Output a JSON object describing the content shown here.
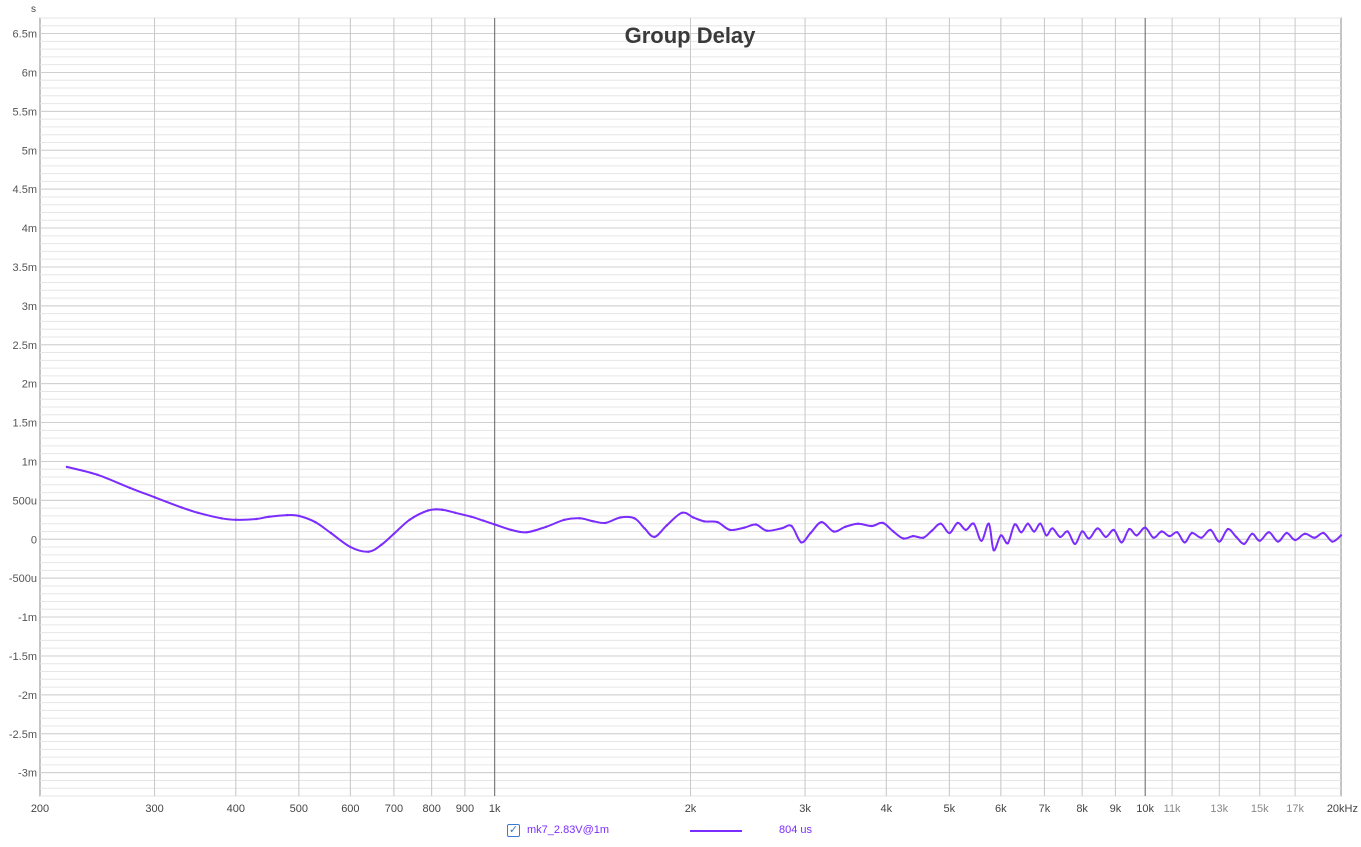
{
  "chart_data": {
    "type": "line",
    "title": "Group Delay",
    "ylabel": "s",
    "xlabel": "",
    "xscale": "log",
    "xlim": [
      200,
      20000
    ],
    "ylim": [
      -3.3,
      6.7
    ],
    "y_unit_note": "values in milliseconds",
    "grid": true,
    "xticks": [
      {
        "v": 200,
        "label": "200"
      },
      {
        "v": 300,
        "label": "300"
      },
      {
        "v": 400,
        "label": "400"
      },
      {
        "v": 500,
        "label": "500"
      },
      {
        "v": 600,
        "label": "600"
      },
      {
        "v": 700,
        "label": "700"
      },
      {
        "v": 800,
        "label": "800"
      },
      {
        "v": 900,
        "label": "900"
      },
      {
        "v": 1000,
        "label": "1k"
      },
      {
        "v": 2000,
        "label": "2k"
      },
      {
        "v": 3000,
        "label": "3k"
      },
      {
        "v": 4000,
        "label": "4k"
      },
      {
        "v": 5000,
        "label": "5k"
      },
      {
        "v": 6000,
        "label": "6k"
      },
      {
        "v": 7000,
        "label": "7k"
      },
      {
        "v": 8000,
        "label": "8k"
      },
      {
        "v": 9000,
        "label": "9k"
      },
      {
        "v": 10000,
        "label": "10k"
      },
      {
        "v": 11000,
        "label": "11k"
      },
      {
        "v": 13000,
        "label": "13k"
      },
      {
        "v": 15000,
        "label": "15k"
      },
      {
        "v": 17000,
        "label": "17k"
      },
      {
        "v": 20000,
        "label": "20kHz"
      }
    ],
    "yticks": [
      {
        "v": 6.5,
        "label": "6.5m"
      },
      {
        "v": 6,
        "label": "6m"
      },
      {
        "v": 5.5,
        "label": "5.5m"
      },
      {
        "v": 5,
        "label": "5m"
      },
      {
        "v": 4.5,
        "label": "4.5m"
      },
      {
        "v": 4,
        "label": "4m"
      },
      {
        "v": 3.5,
        "label": "3.5m"
      },
      {
        "v": 3,
        "label": "3m"
      },
      {
        "v": 2.5,
        "label": "2.5m"
      },
      {
        "v": 2,
        "label": "2m"
      },
      {
        "v": 1.5,
        "label": "1.5m"
      },
      {
        "v": 1,
        "label": "1m"
      },
      {
        "v": 0.5,
        "label": "500u"
      },
      {
        "v": 0,
        "label": "0"
      },
      {
        "v": -0.5,
        "label": "-500u"
      },
      {
        "v": -1,
        "label": "-1m"
      },
      {
        "v": -1.5,
        "label": "-1.5m"
      },
      {
        "v": -2,
        "label": "-2m"
      },
      {
        "v": -2.5,
        "label": "-2.5m"
      },
      {
        "v": -3,
        "label": "-3m"
      }
    ],
    "series": [
      {
        "name": "mk7_2.83V@1m",
        "color": "#7b2cff",
        "points": [
          [
            220,
            0.93
          ],
          [
            245,
            0.83
          ],
          [
            275,
            0.66
          ],
          [
            300,
            0.54
          ],
          [
            330,
            0.41
          ],
          [
            350,
            0.34
          ],
          [
            380,
            0.27
          ],
          [
            400,
            0.25
          ],
          [
            430,
            0.26
          ],
          [
            450,
            0.29
          ],
          [
            480,
            0.31
          ],
          [
            500,
            0.3
          ],
          [
            530,
            0.22
          ],
          [
            560,
            0.08
          ],
          [
            600,
            -0.1
          ],
          [
            640,
            -0.16
          ],
          [
            670,
            -0.07
          ],
          [
            700,
            0.07
          ],
          [
            740,
            0.25
          ],
          [
            790,
            0.37
          ],
          [
            830,
            0.38
          ],
          [
            870,
            0.34
          ],
          [
            920,
            0.29
          ],
          [
            960,
            0.24
          ],
          [
            1000,
            0.19
          ],
          [
            1060,
            0.12
          ],
          [
            1120,
            0.09
          ],
          [
            1200,
            0.16
          ],
          [
            1280,
            0.25
          ],
          [
            1350,
            0.27
          ],
          [
            1420,
            0.23
          ],
          [
            1480,
            0.21
          ],
          [
            1560,
            0.28
          ],
          [
            1640,
            0.27
          ],
          [
            1700,
            0.14
          ],
          [
            1760,
            0.03
          ],
          [
            1840,
            0.18
          ],
          [
            1940,
            0.34
          ],
          [
            2020,
            0.28
          ],
          [
            2100,
            0.23
          ],
          [
            2200,
            0.22
          ],
          [
            2300,
            0.12
          ],
          [
            2420,
            0.15
          ],
          [
            2520,
            0.19
          ],
          [
            2620,
            0.11
          ],
          [
            2760,
            0.14
          ],
          [
            2860,
            0.17
          ],
          [
            2960,
            -0.04
          ],
          [
            3060,
            0.08
          ],
          [
            3180,
            0.22
          ],
          [
            3320,
            0.1
          ],
          [
            3460,
            0.16
          ],
          [
            3620,
            0.2
          ],
          [
            3800,
            0.17
          ],
          [
            3950,
            0.21
          ],
          [
            4100,
            0.1
          ],
          [
            4250,
            0.01
          ],
          [
            4400,
            0.04
          ],
          [
            4560,
            0.02
          ],
          [
            4700,
            0.11
          ],
          [
            4850,
            0.2
          ],
          [
            5000,
            0.08
          ],
          [
            5150,
            0.21
          ],
          [
            5300,
            0.12
          ],
          [
            5450,
            0.2
          ],
          [
            5600,
            -0.02
          ],
          [
            5750,
            0.2
          ],
          [
            5850,
            -0.14
          ],
          [
            6000,
            0.05
          ],
          [
            6150,
            -0.05
          ],
          [
            6300,
            0.19
          ],
          [
            6450,
            0.09
          ],
          [
            6600,
            0.2
          ],
          [
            6750,
            0.1
          ],
          [
            6900,
            0.2
          ],
          [
            7050,
            0.05
          ],
          [
            7200,
            0.14
          ],
          [
            7400,
            0.03
          ],
          [
            7600,
            0.1
          ],
          [
            7800,
            -0.06
          ],
          [
            8000,
            0.1
          ],
          [
            8200,
            0.01
          ],
          [
            8450,
            0.14
          ],
          [
            8700,
            0.03
          ],
          [
            8950,
            0.12
          ],
          [
            9200,
            -0.04
          ],
          [
            9450,
            0.13
          ],
          [
            9700,
            0.05
          ],
          [
            10000,
            0.15
          ],
          [
            10300,
            0.02
          ],
          [
            10600,
            0.1
          ],
          [
            10900,
            0.04
          ],
          [
            11200,
            0.09
          ],
          [
            11500,
            -0.04
          ],
          [
            11800,
            0.08
          ],
          [
            12200,
            0.02
          ],
          [
            12600,
            0.12
          ],
          [
            13000,
            -0.03
          ],
          [
            13400,
            0.13
          ],
          [
            13800,
            0.03
          ],
          [
            14200,
            -0.06
          ],
          [
            14600,
            0.07
          ],
          [
            15000,
            -0.02
          ],
          [
            15500,
            0.09
          ],
          [
            16000,
            -0.03
          ],
          [
            16500,
            0.08
          ],
          [
            17000,
            -0.01
          ],
          [
            17600,
            0.07
          ],
          [
            18200,
            0.02
          ],
          [
            18800,
            0.08
          ],
          [
            19400,
            -0.03
          ],
          [
            20000,
            0.05
          ]
        ]
      }
    ],
    "legend": {
      "placement": "bottom",
      "checked": true,
      "label": "mk7_2.83V@1m",
      "value_text": "804 us"
    }
  }
}
